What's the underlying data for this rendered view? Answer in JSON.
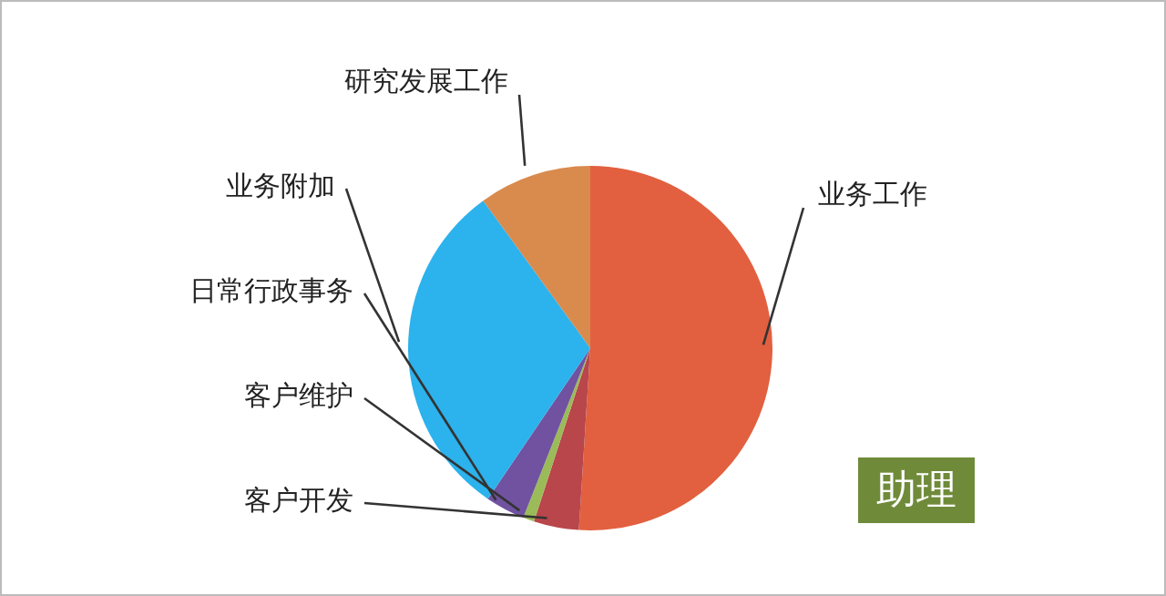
{
  "chart_data": {
    "type": "pie",
    "annotations": [
      "助理"
    ],
    "categories": [
      "业务工作",
      "客户开发",
      "客户维护",
      "日常行政事务",
      "业务附加",
      "研究发展工作"
    ],
    "values": [
      51,
      4,
      1,
      3.5,
      30.5,
      10
    ],
    "colors": [
      "#e2603f",
      "#b8464a",
      "#9bbb59",
      "#7052a0",
      "#2cb2ec",
      "#d98a4d"
    ],
    "legend": false
  }
}
